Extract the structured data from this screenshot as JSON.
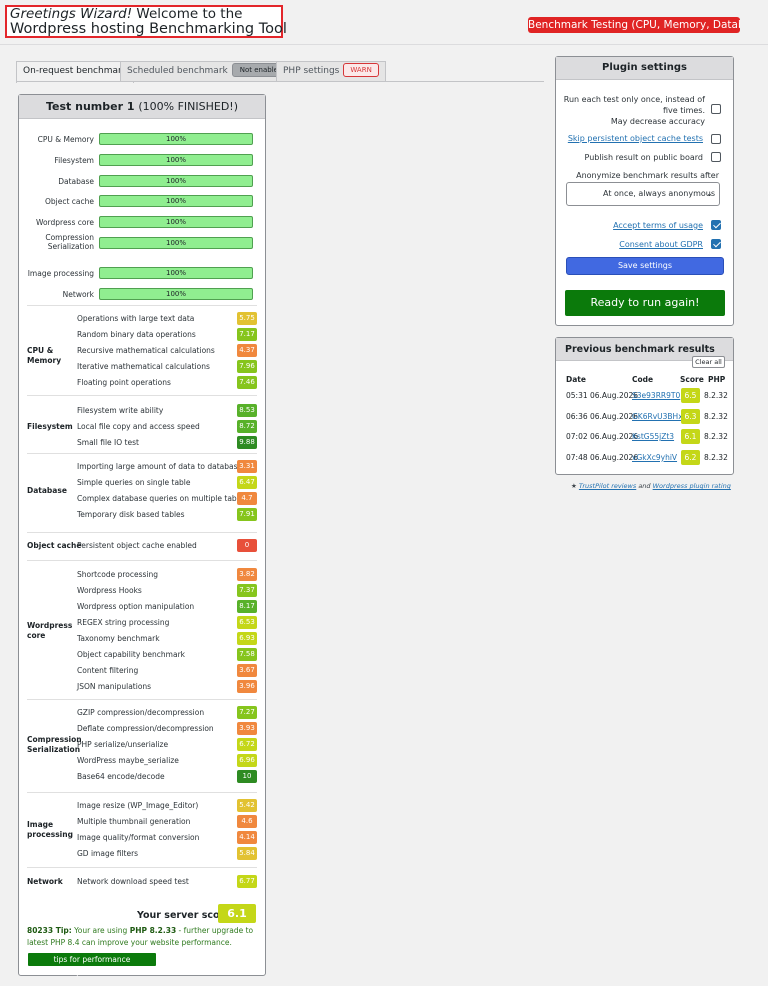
{
  "header": {
    "greeting": "Greetings Wizard!",
    "welcome": " Welcome to the",
    "tool_name": "Wordpress hosting Benchmarking Tool",
    "badge": "Benchmark Testing (CPU, Memory, Database)"
  },
  "tabs": [
    {
      "label": "On-request benchmark",
      "badge": ""
    },
    {
      "label": "Scheduled benchmark",
      "badge": "Not enabled"
    },
    {
      "label": "PHP settings",
      "badge": "WARN"
    }
  ],
  "test": {
    "title": "Test number 1",
    "status": "(100% FINISHED!)",
    "progress": [
      {
        "label": "CPU & Memory",
        "value": "100%"
      },
      {
        "label": "Filesystem",
        "value": "100%"
      },
      {
        "label": "Database",
        "value": "100%"
      },
      {
        "label": "Object cache",
        "value": "100%"
      },
      {
        "label": "Wordpress core",
        "value": "100%"
      },
      {
        "label": "Compression Serialization",
        "value": "100%"
      },
      {
        "label": "Image processing",
        "value": "100%"
      },
      {
        "label": "Network",
        "value": "100%"
      }
    ],
    "categories": [
      {
        "name": "CPU & Memory",
        "tests": [
          {
            "name": "Operations with large text data",
            "score": "5.75"
          },
          {
            "name": "Random binary data operations",
            "score": "7.17"
          },
          {
            "name": "Recursive mathematical calculations",
            "score": "4.37"
          },
          {
            "name": "Iterative mathematical calculations",
            "score": "7.96"
          },
          {
            "name": "Floating point operations",
            "score": "7.46"
          }
        ]
      },
      {
        "name": "Filesystem",
        "tests": [
          {
            "name": "Filesystem write ability",
            "score": "8.53"
          },
          {
            "name": "Local file copy and access speed",
            "score": "8.72"
          },
          {
            "name": "Small file IO test",
            "score": "9.88"
          }
        ]
      },
      {
        "name": "Database",
        "tests": [
          {
            "name": "Importing large amount of data to database",
            "score": "3.31"
          },
          {
            "name": "Simple queries on single table",
            "score": "6.47"
          },
          {
            "name": "Complex database queries on multiple tables",
            "score": "4.7"
          },
          {
            "name": "Temporary disk based tables",
            "score": "7.91"
          }
        ]
      },
      {
        "name": "Object cache",
        "tests": [
          {
            "name": "Persistent object cache enabled",
            "score": "0"
          }
        ]
      },
      {
        "name": "Wordpress core",
        "tests": [
          {
            "name": "Shortcode processing",
            "score": "3.82"
          },
          {
            "name": "Wordpress Hooks",
            "score": "7.37"
          },
          {
            "name": "Wordpress option manipulation",
            "score": "8.17"
          },
          {
            "name": "REGEX string processing",
            "score": "6.53"
          },
          {
            "name": "Taxonomy benchmark",
            "score": "6.93"
          },
          {
            "name": "Object capability benchmark",
            "score": "7.58"
          },
          {
            "name": "Content filtering",
            "score": "3.67"
          },
          {
            "name": "JSON manipulations",
            "score": "3.96"
          }
        ]
      },
      {
        "name": "Compression Serialization",
        "tests": [
          {
            "name": "GZIP compression/decompression",
            "score": "7.27"
          },
          {
            "name": "Deflate compression/decompression",
            "score": "3.93"
          },
          {
            "name": "PHP serialize/unserialize",
            "score": "6.72"
          },
          {
            "name": "WordPress maybe_serialize",
            "score": "6.96"
          },
          {
            "name": "Base64 encode/decode",
            "score": "10"
          }
        ]
      },
      {
        "name": "Image processing",
        "tests": [
          {
            "name": "Image resize (WP_Image_Editor)",
            "score": "5.42"
          },
          {
            "name": "Multiple thumbnail generation",
            "score": "4.6"
          },
          {
            "name": "Image quality/format conversion",
            "score": "4.14"
          },
          {
            "name": "GD image filters",
            "score": "5.84"
          }
        ]
      },
      {
        "name": "Network",
        "tests": [
          {
            "name": "Network download speed test",
            "score": "6.77"
          }
        ]
      }
    ],
    "server_score_label": "Your server score",
    "server_score": "6.1",
    "tip_prefix": "80233 Tip:",
    "tip_text_1": " Your are using ",
    "tip_php": "PHP 8.2.33",
    "tip_text_2": " - further upgrade to latest PHP 8.4 can improve your website performance.",
    "tips_button": "tips for performance improvement"
  },
  "settings": {
    "title": "Plugin settings",
    "run_once_line1": "Run each test only once, instead of",
    "run_once_line2": "five times.",
    "run_once_line3": "May decrease accuracy",
    "skip_cache": "Skip persistent object cache tests",
    "publish": "Publish result on public board",
    "anonymize": "Anonymize benchmark results after",
    "anonymize_value": "At once, always anonymous",
    "accept_terms": "Accept terms of usage",
    "consent_gdpr": "Consent about GDPR",
    "save_label": "Save settings",
    "run_label": "Ready to run again!",
    "checked": {
      "run_once": false,
      "skip_cache": false,
      "publish": false,
      "accept_terms": true,
      "consent_gdpr": true
    }
  },
  "previous": {
    "title": "Previous benchmark results",
    "clear_label": "Clear all",
    "columns": [
      "Date",
      "Code",
      "Score",
      "PHP"
    ],
    "rows": [
      {
        "date": "05:31 06.Aug.2026",
        "code": "S3e93RR9T0",
        "score": "6.5",
        "php": "8.2.32"
      },
      {
        "date": "06:36 06.Aug.2026",
        "code": "GK6RvU3BHx",
        "score": "6.3",
        "php": "8.2.32"
      },
      {
        "date": "07:02 06.Aug.2026",
        "code": "KstG55jZt3",
        "score": "6.1",
        "php": "8.2.32"
      },
      {
        "date": "07:48 06.Aug.2026",
        "code": "vGkXc9yhiV",
        "score": "6.2",
        "php": "8.2.32"
      }
    ]
  },
  "footer": {
    "star": "★",
    "trustpilot": "TrustPilot reviews",
    "and": " and ",
    "wp_rating": "Wordpress plugin rating"
  },
  "colors": {
    "red_score": "#e8503a",
    "orange_score": "#f0883e",
    "yellow_score": "#e2c232",
    "yellowgreen_score": "#c4d718",
    "green_score": "#86c51d",
    "darkgreen_score": "#58b12a",
    "deepgreen_score": "#2e8b22"
  }
}
